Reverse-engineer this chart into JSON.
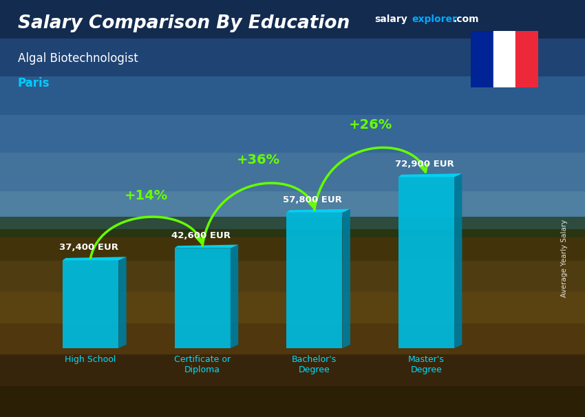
{
  "title_main": "Salary Comparison By Education",
  "subtitle1": "Algal Biotechnologist",
  "subtitle2": "Paris",
  "categories": [
    "High School",
    "Certificate or\nDiploma",
    "Bachelor's\nDegree",
    "Master's\nDegree"
  ],
  "values": [
    37400,
    42600,
    57800,
    72900
  ],
  "value_labels": [
    "37,400 EUR",
    "42,600 EUR",
    "57,800 EUR",
    "72,900 EUR"
  ],
  "pct_labels": [
    "+14%",
    "+36%",
    "+26%"
  ],
  "bar_face_color": "#00b8d9",
  "bar_side_color": "#007a99",
  "bar_top_color": "#00d4f5",
  "title_color": "#ffffff",
  "subtitle1_color": "#ffffff",
  "subtitle2_color": "#00ccff",
  "value_label_color": "#ffffff",
  "pct_color": "#66ff00",
  "arrow_color": "#66ff00",
  "cat_label_color": "#00ddff",
  "ylabel": "Average Yearly Salary",
  "watermark_salary": "salary",
  "watermark_explorer": "explorer",
  "watermark_com": ".com",
  "watermark_color1": "#ffffff",
  "watermark_color2": "#00aaff",
  "flag_blue": "#002395",
  "flag_white": "#ffffff",
  "flag_red": "#ED2939",
  "bg_sky_top": "#1a4a7a",
  "bg_sky_mid": "#3a7abd",
  "bg_field_top": "#6b8a3a",
  "bg_field_mid": "#8b6914",
  "bg_field_bottom": "#5a3d0a",
  "overlay_color": "#000000",
  "overlay_alpha": 0.25
}
